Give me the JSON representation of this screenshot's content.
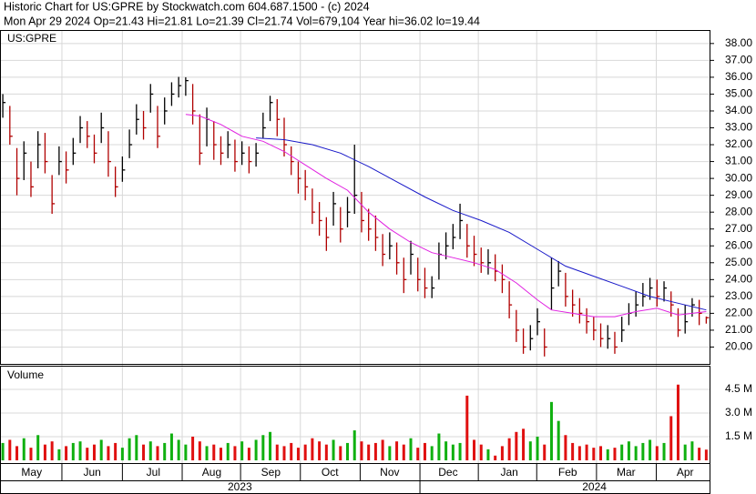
{
  "chart_data": [
    {
      "type": "ohlc",
      "title": "Historic Chart for US:GPRE by Stockwatch.com 604.687.1500 - (c) 2024",
      "subtitle": "Mon Apr 29 2024  Op=21.43  Hi=21.81  Lo=21.39  Cl=21.74  Vol=679,104  Year hi=36.02  lo=19.44",
      "label": "US:GPRE",
      "xlim": [
        -0.4,
        100.6
      ],
      "ylim": [
        19,
        38.8
      ],
      "yticks": [
        {
          "value": 20,
          "label": "20.00"
        },
        {
          "value": 21,
          "label": "21.00"
        },
        {
          "value": 22,
          "label": "22.00"
        },
        {
          "value": 23,
          "label": "23.00"
        },
        {
          "value": 24,
          "label": "24.00"
        },
        {
          "value": 25,
          "label": "25.00"
        },
        {
          "value": 26,
          "label": "26.00"
        },
        {
          "value": 27,
          "label": "27.00"
        },
        {
          "value": 28,
          "label": "28.00"
        },
        {
          "value": 29,
          "label": "29.00"
        },
        {
          "value": 30,
          "label": "30.00"
        },
        {
          "value": 31,
          "label": "31.00"
        },
        {
          "value": 32,
          "label": "32.00"
        },
        {
          "value": 33,
          "label": "33.00"
        },
        {
          "value": 34,
          "label": "34.00"
        },
        {
          "value": 35,
          "label": "35.00"
        },
        {
          "value": 36,
          "label": "36.00"
        },
        {
          "value": 37,
          "label": "37.00"
        },
        {
          "value": 38,
          "label": "38.00"
        }
      ],
      "xgrid": [
        8.4,
        17,
        25.5,
        33.8,
        42.3,
        50.8,
        59.3,
        67.6,
        75.9,
        84.4,
        92.9
      ],
      "grid": true,
      "up_color": "#000000",
      "down_color": "#b00000",
      "high": [
        35,
        34.3,
        31.8,
        32.2,
        31,
        32.8,
        32.7,
        30.2,
        31.9,
        31.6,
        32.4,
        33.7,
        33.4,
        32.6,
        33.9,
        32.8,
        30.7,
        31.3,
        32.9,
        34.4,
        34,
        35.6,
        34.3,
        34.8,
        35.7,
        36.02,
        36,
        35.6,
        33.8,
        34.2,
        33.4,
        32.5,
        32.8,
        32.3,
        32.2,
        31.9,
        32.1,
        33.9,
        34.9,
        34.7,
        33.6,
        31.9,
        31,
        30.5,
        29.4,
        28.6,
        27.7,
        29.2,
        28.3,
        28.9,
        32,
        29.2,
        28.2,
        27.8,
        26.7,
        26.8,
        26.2,
        25.3,
        26.3,
        25.3,
        24.7,
        24.2,
        26.2,
        26.8,
        27.3,
        28.5,
        27.3,
        26.6,
        25.9,
        25.8,
        25.5,
        24.9,
        23.9,
        22.2,
        21.1,
        21.3,
        22.3,
        21.1,
        25.3,
        25.1,
        24.4,
        23.4,
        22.9,
        22.3,
        21.8,
        21.4,
        21.3,
        20.9,
        21.8,
        22.6,
        23.3,
        23.8,
        24.1,
        24,
        23.9,
        23.3,
        22.3,
        22.5,
        22.9,
        22.8,
        21.81
      ],
      "low": [
        33.6,
        32,
        29,
        29.9,
        28.9,
        30.6,
        30.3,
        27.9,
        30.2,
        29.7,
        30.8,
        32.1,
        31.8,
        30.9,
        32.1,
        30.1,
        28.9,
        29.8,
        31.2,
        32.6,
        32.3,
        33.9,
        31.8,
        33.2,
        34.3,
        34.8,
        34.9,
        33.2,
        30.8,
        31.9,
        31.1,
        30.8,
        31.2,
        30.4,
        30.8,
        30.3,
        30.7,
        32.4,
        33.4,
        32.5,
        31.3,
        30.2,
        29.1,
        28.7,
        27.3,
        26.6,
        25.7,
        27.2,
        26.2,
        27.1,
        27.9,
        26.8,
        26.3,
        25.7,
        24.8,
        25.2,
        24.3,
        23.2,
        24.3,
        23.3,
        22.9,
        22.9,
        24,
        25.2,
        25.8,
        26.4,
        25.3,
        24.8,
        24.4,
        24.3,
        23.9,
        23.2,
        21.7,
        20.3,
        19.6,
        19.8,
        20.7,
        19.44,
        22.2,
        23.6,
        22.4,
        21.8,
        21.4,
        20.8,
        20.4,
        20,
        19.9,
        19.6,
        20.3,
        21.3,
        21.8,
        22.4,
        22.8,
        22.4,
        22.7,
        21.8,
        20.6,
        20.8,
        21.8,
        21.3,
        21.39
      ],
      "close": [
        34.5,
        32.5,
        30,
        31.5,
        29.5,
        32,
        31,
        28.5,
        31,
        30.5,
        31.5,
        33,
        32.5,
        31.5,
        33,
        31,
        29.5,
        30.5,
        32,
        33.5,
        33,
        35,
        32.5,
        34,
        35,
        35.5,
        35.8,
        34,
        31.5,
        33.5,
        32,
        31.5,
        32,
        31,
        31.5,
        31,
        31.5,
        33,
        34.5,
        33.5,
        32,
        31,
        30,
        29.5,
        28,
        27.5,
        26.5,
        28.5,
        27,
        28,
        29,
        27.5,
        27,
        26.5,
        25.5,
        26,
        25,
        24,
        25.5,
        24,
        23.5,
        23.5,
        25.5,
        26,
        26.5,
        27.5,
        26,
        25.5,
        25,
        25,
        24.5,
        24,
        22.5,
        21,
        20,
        20.5,
        21.5,
        20,
        23.5,
        24.5,
        23,
        22.5,
        22,
        21.5,
        21,
        20.5,
        20.5,
        20,
        21,
        22,
        22.5,
        23,
        23.5,
        23,
        23.5,
        22.5,
        21,
        21.5,
        22.5,
        22,
        21.74
      ],
      "series": [
        {
          "color": "#e020e0",
          "x": [
            26,
            28,
            31,
            34,
            37,
            40,
            43,
            46,
            49,
            52,
            55,
            58,
            61,
            64,
            67,
            70,
            73,
            76,
            78,
            81,
            84,
            87,
            90,
            93,
            96,
            100
          ],
          "values": [
            33.8,
            33.7,
            33.2,
            32.5,
            32.2,
            31.6,
            30.8,
            30,
            29.3,
            28,
            27,
            26.2,
            25.6,
            25.3,
            25,
            24.6,
            23.8,
            22.8,
            22.2,
            22,
            21.8,
            21.8,
            22.1,
            22.3,
            21.9,
            22.1
          ]
        },
        {
          "color": "#1818c8",
          "x": [
            36,
            40,
            44,
            48,
            52,
            56,
            60,
            64,
            68,
            72,
            76,
            80,
            84,
            88,
            92,
            96,
            100
          ],
          "values": [
            32.4,
            32.3,
            32,
            31.5,
            30.7,
            29.8,
            28.9,
            28.1,
            27.5,
            26.8,
            25.8,
            24.8,
            24.2,
            23.6,
            23,
            22.6,
            22.2
          ]
        }
      ]
    },
    {
      "type": "bar",
      "label": "Volume",
      "xlim": [
        -0.4,
        100.6
      ],
      "ylim": [
        0,
        5.94
      ],
      "yticks": [
        {
          "value": 1.5,
          "label": "1.5 M"
        },
        {
          "value": 3.0,
          "label": "3.0 M"
        },
        {
          "value": 4.5,
          "label": "4.5 M"
        }
      ],
      "up_color": "#10b010",
      "down_color": "#e01010",
      "values": [
        1.1,
        1.3,
        0.9,
        1.4,
        0.8,
        1.6,
        1.0,
        1.2,
        0.7,
        0.9,
        1.1,
        1.2,
        0.8,
        1.0,
        1.3,
        0.9,
        1.1,
        0.8,
        1.4,
        1.6,
        1.0,
        1.2,
        0.9,
        1.1,
        1.7,
        1.3,
        1.0,
        1.5,
        1.2,
        0.9,
        1.0,
        0.8,
        1.1,
        0.9,
        1.2,
        0.8,
        1.3,
        1.6,
        1.8,
        1.0,
        0.9,
        1.1,
        0.8,
        1.0,
        1.4,
        1.2,
        1.0,
        1.3,
        0.9,
        1.1,
        1.9,
        1.2,
        1.0,
        1.1,
        1.3,
        0.9,
        1.2,
        1.0,
        1.4,
        0.8,
        1.1,
        0.9,
        1.7,
        1.2,
        1.0,
        1.1,
        4.1,
        1.3,
        1.0,
        0.7,
        0.3,
        0.9,
        1.4,
        1.8,
        2.0,
        1.2,
        1.5,
        1.0,
        3.7,
        2.5,
        1.6,
        1.1,
        0.9,
        1.0,
        0.8,
        0.9,
        0.7,
        0.8,
        1.0,
        1.2,
        0.9,
        1.1,
        1.3,
        0.9,
        1.1,
        2.8,
        4.8,
        1.0,
        1.2,
        0.8,
        0.68
      ],
      "xticks": [
        {
          "value": 4.1,
          "label": "May"
        },
        {
          "value": 12.7,
          "label": "Jun"
        },
        {
          "value": 21.4,
          "label": "Jul"
        },
        {
          "value": 29.7,
          "label": "Aug"
        },
        {
          "value": 38.1,
          "label": "Sep"
        },
        {
          "value": 46.5,
          "label": "Oct"
        },
        {
          "value": 55.0,
          "label": "Nov"
        },
        {
          "value": 63.3,
          "label": "Dec"
        },
        {
          "value": 72.0,
          "label": "Jan"
        },
        {
          "value": 80.3,
          "label": "Feb"
        },
        {
          "value": 88.6,
          "label": "Mar"
        },
        {
          "value": 97.0,
          "label": "Apr"
        }
      ],
      "years": [
        {
          "value": 33.7,
          "label": "2023"
        },
        {
          "value": 84.1,
          "label": "2024"
        }
      ]
    }
  ]
}
